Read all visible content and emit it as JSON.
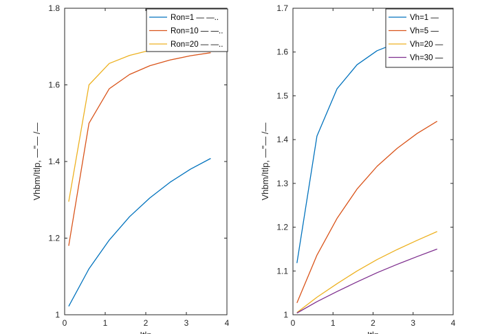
{
  "chart_data": [
    {
      "type": "line",
      "title": "",
      "xlabel": "Itlp",
      "ylabel": "Vhbm/Itlp, —\"— /—",
      "xlim": [
        0,
        4
      ],
      "ylim": [
        1,
        1.8
      ],
      "xticks": [
        "0",
        "1",
        "2",
        "3",
        "4"
      ],
      "yticks": [
        "1",
        "1.2",
        "1.4",
        "1.6",
        "1.8"
      ],
      "x": [
        0.1,
        0.6,
        1.1,
        1.6,
        2.1,
        2.6,
        3.1,
        3.6
      ],
      "legend_position": "top-right",
      "series": [
        {
          "name": "Ron=1 — —..",
          "color": "#0072BD",
          "values": [
            1.022,
            1.12,
            1.195,
            1.256,
            1.305,
            1.346,
            1.38,
            1.408
          ]
        },
        {
          "name": "Ron=10 — —..",
          "color": "#D95319",
          "values": [
            1.18,
            1.5,
            1.59,
            1.627,
            1.65,
            1.665,
            1.676,
            1.684
          ]
        },
        {
          "name": "Ron=20 — —..",
          "color": "#EDB120",
          "values": [
            1.295,
            1.6,
            1.656,
            1.677,
            1.69,
            1.699,
            1.705,
            1.71
          ]
        }
      ]
    },
    {
      "type": "line",
      "title": "",
      "xlabel": "Itlp",
      "ylabel": "Vhbm/Itlp, —\"— /—",
      "xlim": [
        0,
        4
      ],
      "ylim": [
        1,
        1.7
      ],
      "xticks": [
        "0",
        "1",
        "2",
        "3",
        "4"
      ],
      "yticks": [
        "1",
        "1.1",
        "1.2",
        "1.3",
        "1.4",
        "1.5",
        "1.6",
        "1.7"
      ],
      "x": [
        0.1,
        0.6,
        1.1,
        1.6,
        2.1,
        2.6,
        3.1,
        3.6
      ],
      "legend_position": "top-right",
      "series": [
        {
          "name": "Vh=1 —",
          "color": "#0072BD",
          "values": [
            1.118,
            1.408,
            1.516,
            1.571,
            1.603,
            1.621,
            1.633,
            1.642
          ]
        },
        {
          "name": "Vh=5 —",
          "color": "#D95319",
          "values": [
            1.027,
            1.136,
            1.22,
            1.287,
            1.339,
            1.38,
            1.414,
            1.442
          ]
        },
        {
          "name": "Vh=20 —",
          "color": "#EDB120",
          "values": [
            1.005,
            1.04,
            1.071,
            1.1,
            1.126,
            1.149,
            1.17,
            1.19
          ]
        },
        {
          "name": "Vh=30 —",
          "color": "#7E2F8E",
          "values": [
            1.004,
            1.03,
            1.053,
            1.075,
            1.096,
            1.115,
            1.133,
            1.15
          ]
        }
      ]
    }
  ]
}
